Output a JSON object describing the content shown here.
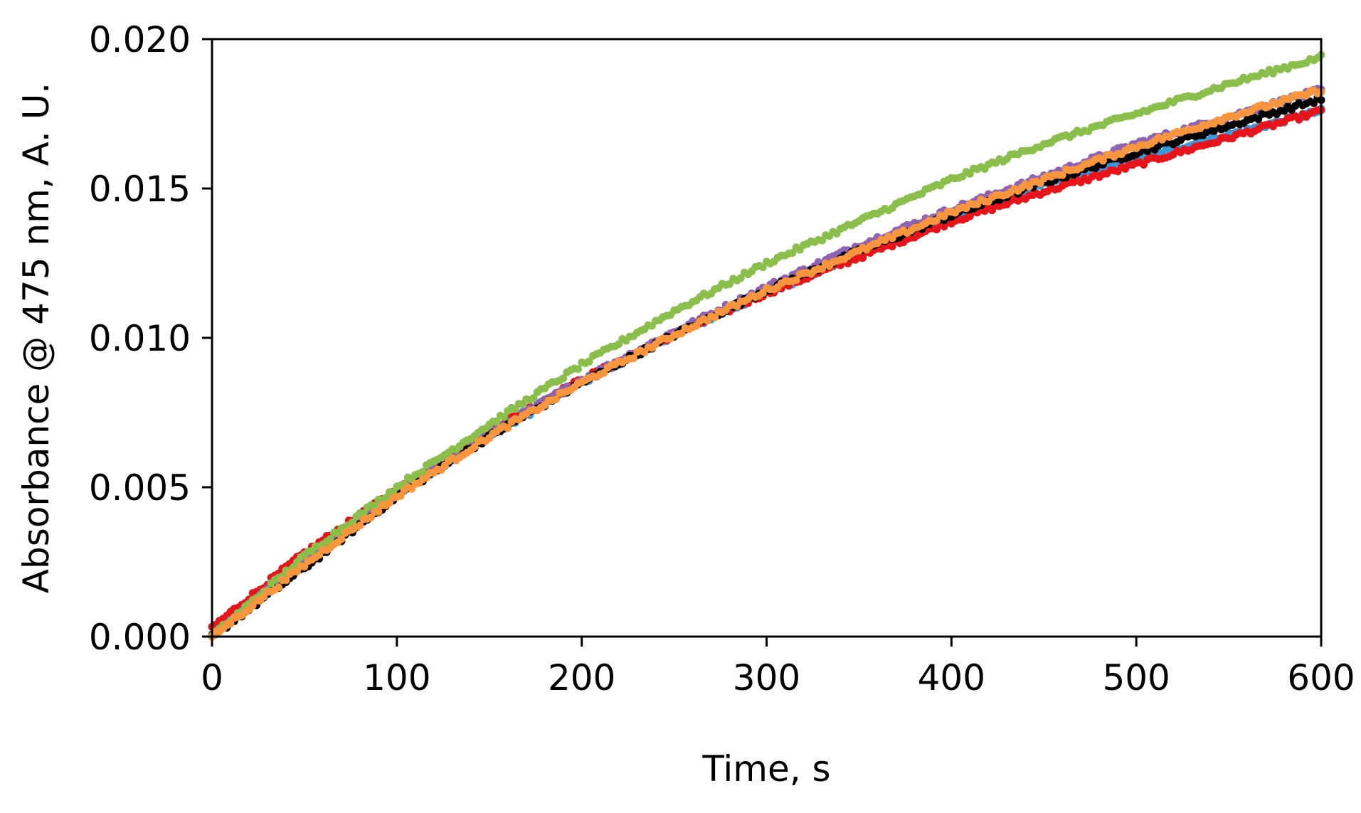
{
  "chart_data": {
    "type": "scatter",
    "title": "",
    "xlabel": "Time, s",
    "ylabel": "Absorbance @ 475 nm, A. U.",
    "xlim": [
      0,
      600
    ],
    "ylim": [
      0,
      0.02
    ],
    "x_ticks": [
      "0",
      "100",
      "200",
      "300",
      "400",
      "500",
      "600"
    ],
    "y_ticks": [
      "0.000",
      "0.005",
      "0.010",
      "0.015",
      "0.020"
    ],
    "grid": false,
    "legend": "none",
    "sample_interval_s": 2,
    "series": [
      {
        "color": "#3A9AD9",
        "x": [
          0,
          50,
          100,
          150,
          200,
          250,
          300,
          350,
          400,
          450,
          500,
          550,
          600
        ],
        "y": [
          0.0,
          0.0026,
          0.0048,
          0.0067,
          0.0085,
          0.0101,
          0.0115,
          0.0128,
          0.014,
          0.0151,
          0.016,
          0.0168,
          0.0176
        ]
      },
      {
        "color": "#E8141B",
        "x": [
          0,
          50,
          100,
          150,
          200,
          250,
          300,
          350,
          400,
          450,
          500,
          550,
          600
        ],
        "y": [
          0.0003,
          0.0028,
          0.0049,
          0.0069,
          0.0086,
          0.0101,
          0.0115,
          0.0127,
          0.0139,
          0.0149,
          0.0158,
          0.0167,
          0.0176
        ]
      },
      {
        "color": "#8E63B5",
        "x": [
          0,
          50,
          100,
          150,
          200,
          250,
          300,
          350,
          400,
          450,
          500,
          550,
          600
        ],
        "y": [
          0.0,
          0.0026,
          0.0048,
          0.0068,
          0.0086,
          0.0102,
          0.0117,
          0.0131,
          0.0143,
          0.0154,
          0.0165,
          0.0174,
          0.0183
        ]
      },
      {
        "color": "#000000",
        "x": [
          0,
          50,
          100,
          150,
          200,
          250,
          300,
          350,
          400,
          450,
          500,
          550,
          600
        ],
        "y": [
          0.0,
          0.0023,
          0.0047,
          0.0067,
          0.0085,
          0.0101,
          0.0116,
          0.0129,
          0.0141,
          0.0152,
          0.0162,
          0.0171,
          0.018
        ]
      },
      {
        "color": "#8BBF4C",
        "x": [
          0,
          50,
          100,
          150,
          200,
          250,
          300,
          350,
          400,
          450,
          500,
          550,
          600
        ],
        "y": [
          0.0,
          0.0027,
          0.005,
          0.0071,
          0.0091,
          0.0109,
          0.0125,
          0.0139,
          0.0153,
          0.0165,
          0.0175,
          0.0185,
          0.0194
        ]
      },
      {
        "color": "#F9963D",
        "x": [
          0,
          50,
          100,
          150,
          200,
          250,
          300,
          350,
          400,
          450,
          500,
          550,
          600
        ],
        "y": [
          0.0,
          0.0024,
          0.0047,
          0.0067,
          0.0085,
          0.0101,
          0.0116,
          0.0129,
          0.0142,
          0.0153,
          0.0164,
          0.0174,
          0.0183
        ]
      }
    ]
  }
}
